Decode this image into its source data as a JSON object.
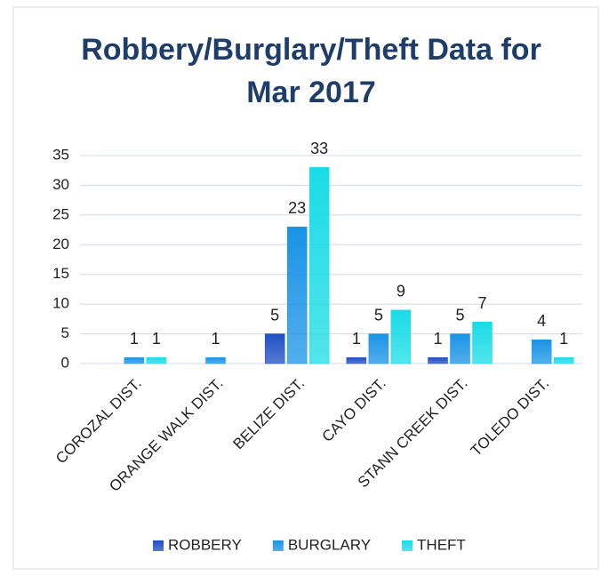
{
  "chart_data": {
    "type": "bar",
    "title": "Robbery/Burglary/Theft Data for Mar 2017",
    "categories": [
      "COROZAL DIST.",
      "ORANGE WALK DIST.",
      "BELIZE DIST.",
      "CAYO DIST.",
      "STANN CREEK DIST.",
      "TOLEDO DIST."
    ],
    "series": [
      {
        "name": "ROBBERY",
        "color": "#1f4fc4",
        "values": [
          null,
          null,
          5,
          1,
          1,
          null
        ]
      },
      {
        "name": "BURGLARY",
        "color": "#1a93e6",
        "values": [
          1,
          1,
          23,
          5,
          5,
          4
        ]
      },
      {
        "name": "THEFT",
        "color": "#19dce6",
        "values": [
          1,
          null,
          33,
          9,
          7,
          1
        ]
      }
    ],
    "ylim": [
      0,
      35
    ],
    "yticks": [
      0,
      5,
      10,
      15,
      20,
      25,
      30,
      35
    ],
    "grid": true,
    "legend": "bottom"
  }
}
